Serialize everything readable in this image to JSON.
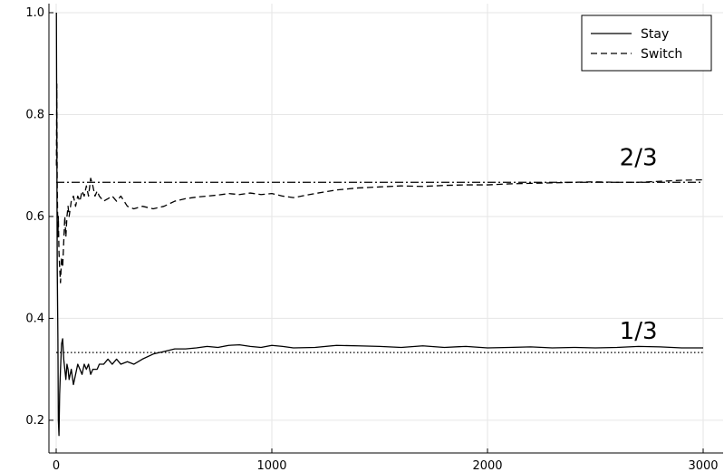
{
  "chart_data": {
    "type": "line",
    "title": "",
    "xlabel": "",
    "ylabel": "",
    "xlim": [
      0,
      3000
    ],
    "ylim": [
      0.15,
      1.0
    ],
    "grid": true,
    "legend_position": "top-right",
    "x_ticks": [
      0,
      1000,
      2000,
      3000
    ],
    "x_tick_labels": [
      "0",
      "1000",
      "2000",
      "3000"
    ],
    "y_ticks": [
      0.2,
      0.4,
      0.6,
      0.8,
      1.0
    ],
    "y_tick_labels": [
      "0.2",
      "0.4",
      "0.6",
      "0.8",
      "1.0"
    ],
    "series": [
      {
        "name": "Stay",
        "style": "solid",
        "color": "#000000",
        "x": [
          1,
          3,
          5,
          8,
          10,
          13,
          16,
          20,
          25,
          30,
          35,
          40,
          45,
          50,
          55,
          60,
          70,
          80,
          90,
          100,
          110,
          120,
          130,
          140,
          150,
          160,
          170,
          180,
          190,
          200,
          220,
          240,
          260,
          280,
          300,
          330,
          360,
          400,
          450,
          500,
          550,
          600,
          650,
          700,
          750,
          800,
          850,
          900,
          950,
          1000,
          1050,
          1100,
          1200,
          1300,
          1400,
          1500,
          1600,
          1700,
          1800,
          1900,
          2000,
          2100,
          2200,
          2300,
          2400,
          2500,
          2600,
          2700,
          2800,
          2900,
          3000
        ],
        "values": [
          1.0,
          0.75,
          0.5,
          0.36,
          0.2,
          0.17,
          0.25,
          0.3,
          0.35,
          0.36,
          0.32,
          0.3,
          0.28,
          0.31,
          0.3,
          0.28,
          0.3,
          0.27,
          0.29,
          0.31,
          0.3,
          0.29,
          0.31,
          0.3,
          0.31,
          0.29,
          0.3,
          0.3,
          0.3,
          0.31,
          0.31,
          0.32,
          0.31,
          0.32,
          0.31,
          0.315,
          0.31,
          0.32,
          0.33,
          0.335,
          0.34,
          0.34,
          0.342,
          0.345,
          0.343,
          0.347,
          0.348,
          0.345,
          0.343,
          0.347,
          0.345,
          0.342,
          0.343,
          0.347,
          0.346,
          0.345,
          0.343,
          0.346,
          0.343,
          0.345,
          0.342,
          0.343,
          0.344,
          0.342,
          0.343,
          0.342,
          0.343,
          0.345,
          0.344,
          0.342,
          0.342
        ]
      },
      {
        "name": "Switch",
        "style": "dashed",
        "color": "#000000",
        "x": [
          1,
          3,
          5,
          8,
          10,
          13,
          16,
          20,
          25,
          30,
          35,
          40,
          45,
          50,
          55,
          60,
          70,
          80,
          90,
          100,
          110,
          120,
          130,
          140,
          150,
          160,
          170,
          180,
          190,
          200,
          220,
          240,
          260,
          280,
          300,
          330,
          360,
          400,
          450,
          500,
          550,
          600,
          650,
          700,
          750,
          800,
          850,
          900,
          950,
          1000,
          1050,
          1100,
          1200,
          1300,
          1400,
          1500,
          1600,
          1700,
          1800,
          1900,
          2000,
          2100,
          2200,
          2300,
          2400,
          2500,
          2600,
          2700,
          2800,
          2900,
          3000
        ],
        "values": [
          0.7,
          0.86,
          0.66,
          0.56,
          0.6,
          0.53,
          0.5,
          0.47,
          0.52,
          0.5,
          0.55,
          0.6,
          0.56,
          0.6,
          0.62,
          0.6,
          0.63,
          0.64,
          0.62,
          0.64,
          0.63,
          0.65,
          0.64,
          0.66,
          0.64,
          0.675,
          0.66,
          0.64,
          0.65,
          0.64,
          0.63,
          0.635,
          0.64,
          0.63,
          0.64,
          0.62,
          0.615,
          0.62,
          0.615,
          0.62,
          0.63,
          0.635,
          0.638,
          0.64,
          0.642,
          0.645,
          0.643,
          0.646,
          0.643,
          0.645,
          0.64,
          0.637,
          0.645,
          0.652,
          0.656,
          0.658,
          0.66,
          0.659,
          0.661,
          0.662,
          0.662,
          0.664,
          0.665,
          0.666,
          0.667,
          0.668,
          0.667,
          0.667,
          0.669,
          0.671,
          0.672
        ]
      },
      {
        "name": "2/3 reference",
        "style": "dashdot",
        "color": "#000000",
        "x": [
          0,
          3000
        ],
        "values": [
          0.667,
          0.667
        ]
      },
      {
        "name": "1/3 reference",
        "style": "dotted",
        "color": "#000000",
        "x": [
          0,
          3000
        ],
        "values": [
          0.333,
          0.333
        ]
      }
    ],
    "legend": [
      {
        "label": "Stay",
        "style": "solid"
      },
      {
        "label": "Switch",
        "style": "dashed"
      }
    ],
    "annotations": [
      {
        "text": "2/3",
        "x": 2700,
        "y": 0.7
      },
      {
        "text": "1/3",
        "x": 2700,
        "y": 0.36
      }
    ]
  }
}
